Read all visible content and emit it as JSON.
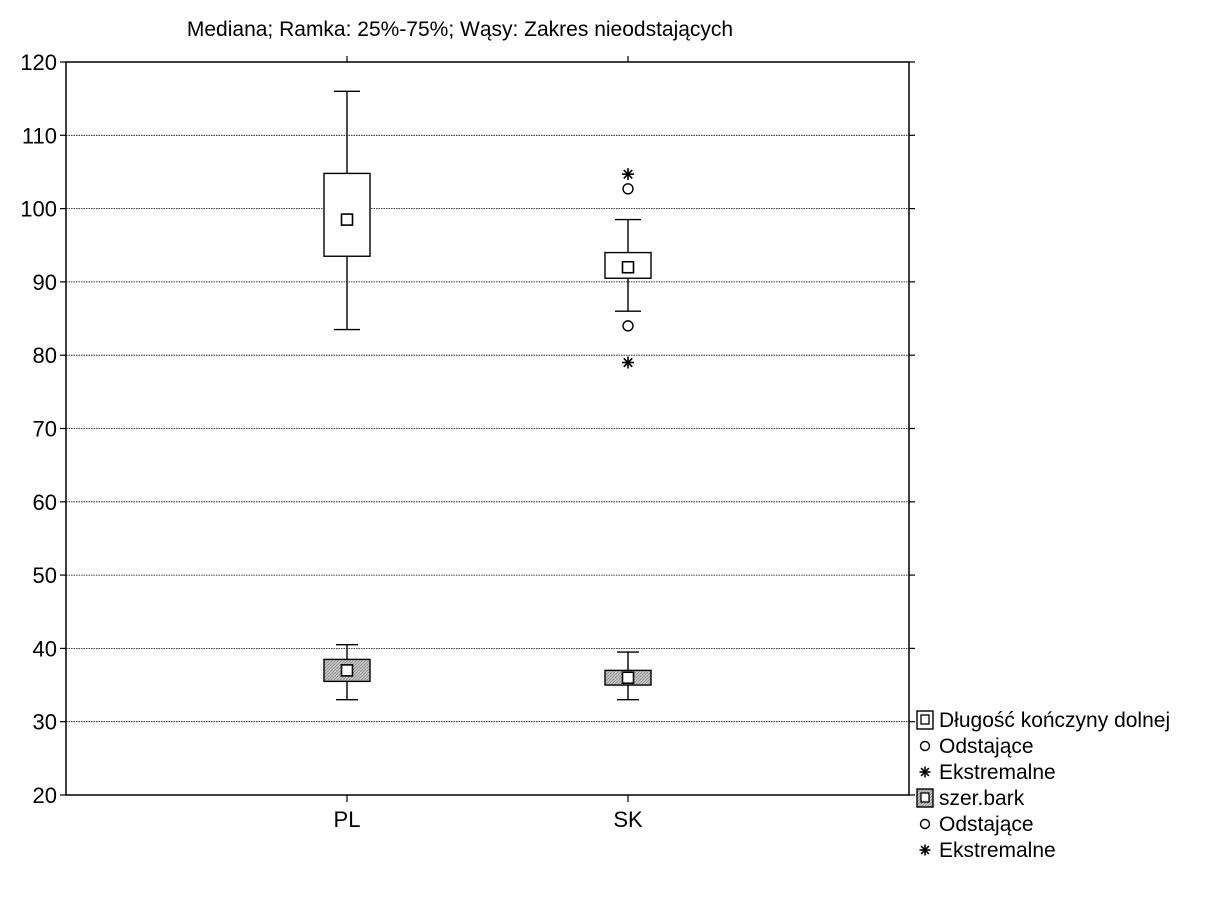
{
  "chart_data": {
    "type": "boxplot",
    "title": "Mediana; Ramka: 25%-75%; Wąsy: Zakres nieodstających",
    "categories": [
      "PL",
      "SK"
    ],
    "ylim": [
      20,
      120
    ],
    "yticks": [
      20,
      30,
      40,
      50,
      60,
      70,
      80,
      90,
      100,
      110,
      120
    ],
    "grid": true,
    "legend_position": "right",
    "series": [
      {
        "name": "Długość kończyny dolnej",
        "fill": "#ffffff",
        "boxes": [
          {
            "category": "PL",
            "median": 98.5,
            "q1": 93.5,
            "q3": 104.8,
            "whisker_low": 83.5,
            "whisker_high": 116,
            "outliers": [],
            "extremes": []
          },
          {
            "category": "SK",
            "median": 92,
            "q1": 90.5,
            "q3": 94,
            "whisker_low": 86,
            "whisker_high": 98.5,
            "outliers": [
              84,
              102.7
            ],
            "extremes": [
              79,
              104.7
            ]
          }
        ]
      },
      {
        "name": "szer.bark",
        "fill": "#c8c8c8",
        "boxes": [
          {
            "category": "PL",
            "median": 37,
            "q1": 35.5,
            "q3": 38.5,
            "whisker_low": 33,
            "whisker_high": 40.5,
            "outliers": [],
            "extremes": []
          },
          {
            "category": "SK",
            "median": 36,
            "q1": 35,
            "q3": 37,
            "whisker_low": 33,
            "whisker_high": 39.5,
            "outliers": [],
            "extremes": []
          }
        ]
      }
    ],
    "legend": [
      {
        "label": "Długość kończyny dolnej",
        "symbol": "box-white"
      },
      {
        "label": "Odstające",
        "symbol": "circle"
      },
      {
        "label": "Ekstremalne",
        "symbol": "asterisk"
      },
      {
        "label": "szer.bark",
        "symbol": "box-gray"
      },
      {
        "label": "Odstające",
        "symbol": "circle"
      },
      {
        "label": "Ekstremalne",
        "symbol": "asterisk"
      }
    ]
  }
}
